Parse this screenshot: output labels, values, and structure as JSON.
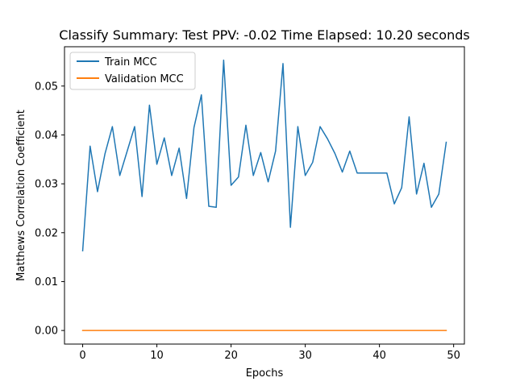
{
  "chart_data": {
    "type": "line",
    "title": "Classify Summary: Test PPV: -0.02 Time Elapsed: 10.20 seconds",
    "xlabel": "Epochs",
    "ylabel": "Matthews Correlation Coefficient",
    "xlim": [
      -2.45,
      51.45
    ],
    "ylim": [
      -0.00278,
      0.05804
    ],
    "xticks": [
      0,
      10,
      20,
      30,
      40,
      50
    ],
    "xtick_labels": [
      "0",
      "10",
      "20",
      "30",
      "40",
      "50"
    ],
    "yticks": [
      0.0,
      0.01,
      0.02,
      0.03,
      0.04,
      0.05
    ],
    "ytick_labels": [
      "0.00",
      "0.01",
      "0.02",
      "0.03",
      "0.04",
      "0.05"
    ],
    "grid": false,
    "legend_position": "upper left",
    "x": [
      0,
      1,
      2,
      3,
      4,
      5,
      6,
      7,
      8,
      9,
      10,
      11,
      12,
      13,
      14,
      15,
      16,
      17,
      18,
      19,
      20,
      21,
      22,
      23,
      24,
      25,
      26,
      27,
      28,
      29,
      30,
      31,
      32,
      33,
      34,
      35,
      36,
      37,
      38,
      39,
      40,
      41,
      42,
      43,
      44,
      45,
      46,
      47,
      48,
      49
    ],
    "series": [
      {
        "name": "Train MCC",
        "color": "#1f77b4",
        "values": [
          0.0163,
          0.0377,
          0.0284,
          0.0361,
          0.0417,
          0.0317,
          0.0367,
          0.0417,
          0.0274,
          0.0461,
          0.034,
          0.0394,
          0.0317,
          0.0373,
          0.027,
          0.0415,
          0.0482,
          0.0254,
          0.0252,
          0.0553,
          0.0297,
          0.0314,
          0.042,
          0.0317,
          0.0364,
          0.0304,
          0.0367,
          0.0546,
          0.0211,
          0.0417,
          0.0317,
          0.0344,
          0.0417,
          0.0392,
          0.0362,
          0.0324,
          0.0367,
          0.0322,
          0.0322,
          0.0322,
          0.0322,
          0.0322,
          0.0259,
          0.0292,
          0.0437,
          0.0279,
          0.0342,
          0.0252,
          0.0279,
          0.0385
        ]
      },
      {
        "name": "Validation MCC",
        "color": "#ff7f0e",
        "values": [
          0,
          0,
          0,
          0,
          0,
          0,
          0,
          0,
          0,
          0,
          0,
          0,
          0,
          0,
          0,
          0,
          0,
          0,
          0,
          0,
          0,
          0,
          0,
          0,
          0,
          0,
          0,
          0,
          0,
          0,
          0,
          0,
          0,
          0,
          0,
          0,
          0,
          0,
          0,
          0,
          0,
          0,
          0,
          0,
          0,
          0,
          0,
          0,
          0,
          0
        ]
      }
    ]
  }
}
